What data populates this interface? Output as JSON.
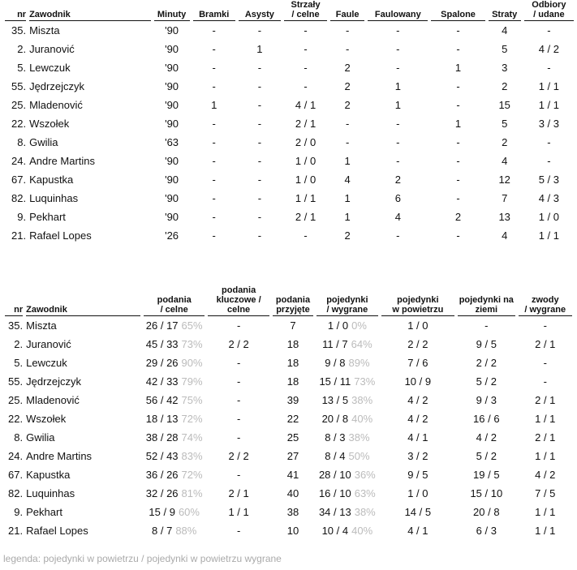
{
  "table1": {
    "headers": [
      [
        "nr"
      ],
      [
        "Zawodnik"
      ],
      [
        "Minuty"
      ],
      [
        "Bramki"
      ],
      [
        "Asysty"
      ],
      [
        "Strzały",
        "/ celne"
      ],
      [
        "Faule"
      ],
      [
        "Faulowany"
      ],
      [
        "Spalone"
      ],
      [
        "Straty"
      ],
      [
        "Odbiory",
        "/ udane"
      ]
    ],
    "rows": [
      [
        "35.",
        "Miszta",
        "'90",
        "-",
        "-",
        "-",
        "-",
        "-",
        "-",
        "4",
        "-"
      ],
      [
        "2.",
        "Juranović",
        "'90",
        "-",
        "1",
        "-",
        "-",
        "-",
        "-",
        "5",
        "4 / 2"
      ],
      [
        "5.",
        "Lewczuk",
        "'90",
        "-",
        "-",
        "-",
        "2",
        "-",
        "1",
        "3",
        "-"
      ],
      [
        "55.",
        "Jędrzejczyk",
        "'90",
        "-",
        "-",
        "-",
        "2",
        "1",
        "-",
        "2",
        "1 / 1"
      ],
      [
        "25.",
        "Mladenović",
        "'90",
        "1",
        "-",
        "4 / 1",
        "2",
        "1",
        "-",
        "15",
        "1 / 1"
      ],
      [
        "22.",
        "Wszołek",
        "'90",
        "-",
        "-",
        "2 / 1",
        "-",
        "-",
        "1",
        "5",
        "3 / 3"
      ],
      [
        "8.",
        "Gwilia",
        "'63",
        "-",
        "-",
        "2 / 0",
        "-",
        "-",
        "-",
        "2",
        "-"
      ],
      [
        "24.",
        "Andre Martins",
        "'90",
        "-",
        "-",
        "1 / 0",
        "1",
        "-",
        "-",
        "4",
        "-"
      ],
      [
        "67.",
        "Kapustka",
        "'90",
        "-",
        "-",
        "1 / 0",
        "4",
        "2",
        "-",
        "12",
        "5 / 3"
      ],
      [
        "82.",
        "Luquinhas",
        "'90",
        "-",
        "-",
        "1 / 1",
        "1",
        "6",
        "-",
        "7",
        "4 / 3"
      ],
      [
        "9.",
        "Pekhart",
        "'90",
        "-",
        "-",
        "2 / 1",
        "1",
        "4",
        "2",
        "13",
        "1 / 0"
      ],
      [
        "21.",
        "Rafael Lopes",
        "'26",
        "-",
        "-",
        "-",
        "2",
        "-",
        "-",
        "4",
        "1 / 1"
      ]
    ]
  },
  "table2": {
    "headers": [
      [
        "nr"
      ],
      [
        "Zawodnik"
      ],
      [
        "podania",
        "/ celne"
      ],
      [
        "podania",
        "kluczowe /",
        "celne"
      ],
      [
        "podania",
        "przyjęte"
      ],
      [
        "pojedynki",
        "/ wygrane"
      ],
      [
        "pojedynki",
        "w powietrzu"
      ],
      [
        "pojedynki na",
        "ziemi"
      ],
      [
        "zwody",
        "/ wygrane"
      ]
    ],
    "rows": [
      [
        "35.",
        "Miszta",
        {
          "value": "26 / 17",
          "pct": "65%"
        },
        "-",
        "7",
        {
          "value": "1 / 0",
          "pct": "0%"
        },
        "1 / 0",
        "-",
        "-"
      ],
      [
        "2.",
        "Juranović",
        {
          "value": "45 / 33",
          "pct": "73%"
        },
        "2 / 2",
        "18",
        {
          "value": "11 / 7",
          "pct": "64%"
        },
        "2 / 2",
        "9 / 5",
        "2 / 1"
      ],
      [
        "5.",
        "Lewczuk",
        {
          "value": "29 / 26",
          "pct": "90%"
        },
        "-",
        "18",
        {
          "value": "9 / 8",
          "pct": "89%"
        },
        "7 / 6",
        "2 / 2",
        "-"
      ],
      [
        "55.",
        "Jędrzejczyk",
        {
          "value": "42 / 33",
          "pct": "79%"
        },
        "-",
        "18",
        {
          "value": "15 / 11",
          "pct": "73%"
        },
        "10 / 9",
        "5 / 2",
        "-"
      ],
      [
        "25.",
        "Mladenović",
        {
          "value": "56 / 42",
          "pct": "75%"
        },
        "-",
        "39",
        {
          "value": "13 / 5",
          "pct": "38%"
        },
        "4 / 2",
        "9 / 3",
        "2 / 1"
      ],
      [
        "22.",
        "Wszołek",
        {
          "value": "18 / 13",
          "pct": "72%"
        },
        "-",
        "22",
        {
          "value": "20 / 8",
          "pct": "40%"
        },
        "4 / 2",
        "16 / 6",
        "1 / 1"
      ],
      [
        "8.",
        "Gwilia",
        {
          "value": "38 / 28",
          "pct": "74%"
        },
        "-",
        "25",
        {
          "value": "8 / 3",
          "pct": "38%"
        },
        "4 / 1",
        "4 / 2",
        "2 / 1"
      ],
      [
        "24.",
        "Andre Martins",
        {
          "value": "52 / 43",
          "pct": "83%"
        },
        "2 / 2",
        "27",
        {
          "value": "8 / 4",
          "pct": "50%"
        },
        "3 / 2",
        "5 / 2",
        "1 / 1"
      ],
      [
        "67.",
        "Kapustka",
        {
          "value": "36 / 26",
          "pct": "72%"
        },
        "-",
        "41",
        {
          "value": "28 / 10",
          "pct": "36%"
        },
        "9 / 5",
        "19 / 5",
        "4 / 2"
      ],
      [
        "82.",
        "Luquinhas",
        {
          "value": "32 / 26",
          "pct": "81%"
        },
        "2 / 1",
        "40",
        {
          "value": "16 / 10",
          "pct": "63%"
        },
        "1 / 0",
        "15 / 10",
        "7 / 5"
      ],
      [
        "9.",
        "Pekhart",
        {
          "value": "15 / 9",
          "pct": "60%"
        },
        "1 / 1",
        "38",
        {
          "value": "34 / 13",
          "pct": "38%"
        },
        "14 / 5",
        "20 / 8",
        "1 / 1"
      ],
      [
        "21.",
        "Rafael Lopes",
        {
          "value": "8 / 7",
          "pct": "88%"
        },
        "-",
        "10",
        {
          "value": "10 / 4",
          "pct": "40%"
        },
        "4 / 1",
        "6 / 3",
        "1 / 1"
      ]
    ]
  },
  "legend": "legenda: pojedynki w powietrzu / pojedynki w powietrzu wygrane"
}
